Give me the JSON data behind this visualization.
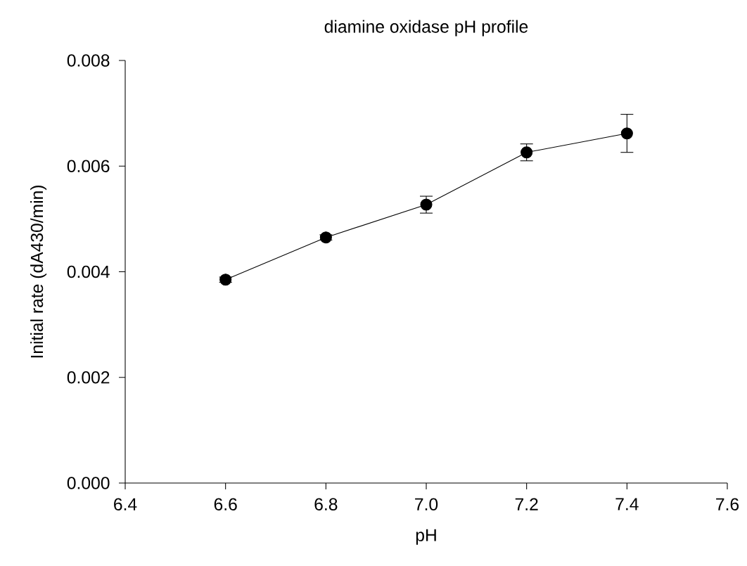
{
  "chart_data": {
    "type": "line",
    "title": "diamine oxidase pH profile",
    "xlabel": "pH",
    "ylabel": "Initial rate (dA430/min)",
    "x": [
      6.6,
      6.8,
      7.0,
      7.2,
      7.4
    ],
    "series": [
      {
        "color": "#000000",
        "values": [
          0.00385,
          0.00465,
          0.00527,
          0.00626,
          0.00662
        ],
        "errors": [
          5e-05,
          5e-05,
          0.00016,
          0.00016,
          0.00036
        ]
      }
    ],
    "xlim": [
      6.4,
      7.6
    ],
    "xticks": [
      {
        "value": 6.4,
        "label": "6.4"
      },
      {
        "value": 6.6,
        "label": "6.6"
      },
      {
        "value": 6.8,
        "label": "6.8"
      },
      {
        "value": 7.0,
        "label": "7.0"
      },
      {
        "value": 7.2,
        "label": "7.2"
      },
      {
        "value": 7.4,
        "label": "7.4"
      },
      {
        "value": 7.6,
        "label": "7.6"
      }
    ],
    "ylim": [
      0,
      0.008
    ],
    "yticks": [
      {
        "value": 0,
        "label": "0.000"
      },
      {
        "value": 0.002,
        "label": "0.002"
      },
      {
        "value": 0.004,
        "label": "0.004"
      },
      {
        "value": 0.006,
        "label": "0.006"
      },
      {
        "value": 0.008,
        "label": "0.008"
      }
    ],
    "grid": false,
    "marker": "circle",
    "line_style": "solid"
  }
}
